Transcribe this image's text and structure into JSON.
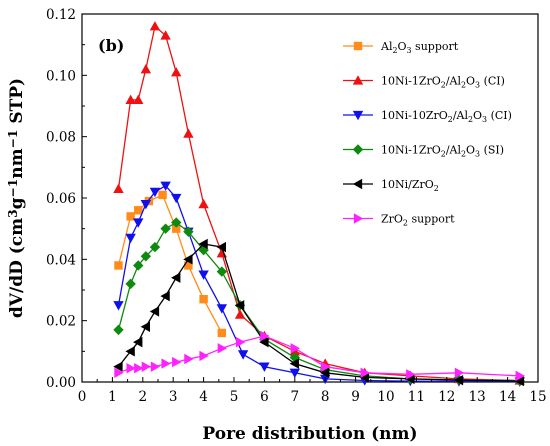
{
  "chart_data": {
    "type": "line",
    "panel_label": "(b)",
    "xlabel": "Pore distribution (nm)",
    "ylabel_parts": [
      {
        "t": "dV/dD (cm"
      },
      {
        "t": "3",
        "s": "sup"
      },
      {
        "t": "g"
      },
      {
        "t": "−1",
        "s": "sup"
      },
      {
        "t": "nm"
      },
      {
        "t": "−1",
        "s": "sup"
      },
      {
        "t": " STP)"
      }
    ],
    "xlim": [
      0,
      15
    ],
    "ylim": [
      0,
      0.12
    ],
    "xticks": [
      0,
      1,
      2,
      3,
      4,
      5,
      6,
      7,
      8,
      9,
      10,
      11,
      12,
      13,
      14,
      15
    ],
    "yticks": [
      0.0,
      0.02,
      0.04,
      0.06,
      0.08,
      0.1,
      0.12
    ],
    "ytick_labels": [
      "0.00",
      "0.02",
      "0.04",
      "0.06",
      "0.08",
      "0.10",
      "0.12"
    ],
    "legend_position": "right",
    "series": [
      {
        "name": "Al2O3 support",
        "name_parts": [
          {
            "t": "Al"
          },
          {
            "t": "2",
            "s": "sub"
          },
          {
            "t": "O"
          },
          {
            "t": "3",
            "s": "sub"
          },
          {
            "t": " support"
          }
        ],
        "color": "#ff8c1a",
        "marker": "square",
        "points": [
          [
            1.2,
            0.038
          ],
          [
            1.6,
            0.054
          ],
          [
            1.85,
            0.056
          ],
          [
            2.2,
            0.059
          ],
          [
            2.65,
            0.061
          ],
          [
            3.1,
            0.05
          ],
          [
            3.5,
            0.038
          ],
          [
            4.0,
            0.027
          ],
          [
            4.6,
            0.016
          ]
        ]
      },
      {
        "name": "10Ni-1ZrO2/Al2O3 (CI)",
        "name_parts": [
          {
            "t": "10Ni-1ZrO"
          },
          {
            "t": "2",
            "s": "sub"
          },
          {
            "t": "/Al"
          },
          {
            "t": "2",
            "s": "sub"
          },
          {
            "t": "O"
          },
          {
            "t": "3",
            "s": "sub"
          },
          {
            "t": " (CI)"
          }
        ],
        "color": "#ee1111",
        "marker": "triangle-up",
        "points": [
          [
            1.2,
            0.063
          ],
          [
            1.6,
            0.092
          ],
          [
            1.85,
            0.092
          ],
          [
            2.1,
            0.102
          ],
          [
            2.4,
            0.116
          ],
          [
            2.75,
            0.113
          ],
          [
            3.1,
            0.101
          ],
          [
            3.5,
            0.081
          ],
          [
            4.0,
            0.058
          ],
          [
            4.6,
            0.042
          ],
          [
            5.2,
            0.022
          ],
          [
            6.0,
            0.015
          ],
          [
            7.0,
            0.01
          ],
          [
            8.0,
            0.006
          ],
          [
            9.3,
            0.003
          ],
          [
            10.8,
            0.002
          ],
          [
            12.4,
            0.001
          ],
          [
            14.4,
            0.0005
          ]
        ]
      },
      {
        "name": "10Ni-10ZrO2/Al2O3 (CI)",
        "name_parts": [
          {
            "t": "10Ni-10ZrO"
          },
          {
            "t": "2",
            "s": "sub"
          },
          {
            "t": "/Al"
          },
          {
            "t": "2",
            "s": "sub"
          },
          {
            "t": "O"
          },
          {
            "t": "3",
            "s": "sub"
          },
          {
            "t": " (CI)"
          }
        ],
        "color": "#1010ee",
        "marker": "triangle-down",
        "points": [
          [
            1.2,
            0.025
          ],
          [
            1.6,
            0.047
          ],
          [
            1.85,
            0.052
          ],
          [
            2.1,
            0.058
          ],
          [
            2.4,
            0.062
          ],
          [
            2.75,
            0.064
          ],
          [
            3.1,
            0.06
          ],
          [
            3.5,
            0.049
          ],
          [
            4.0,
            0.035
          ],
          [
            4.6,
            0.024
          ],
          [
            5.3,
            0.009
          ],
          [
            6.0,
            0.005
          ],
          [
            7.0,
            0.003
          ],
          [
            8.0,
            0.001
          ],
          [
            9.3,
            0.0005
          ],
          [
            10.8,
            0.0003
          ],
          [
            12.4,
            0.0002
          ],
          [
            14.4,
            0.0001
          ]
        ]
      },
      {
        "name": "10Ni-1ZrO2/Al2O3 (SI)",
        "name_parts": [
          {
            "t": "10Ni-1ZrO"
          },
          {
            "t": "2",
            "s": "sub"
          },
          {
            "t": "/Al"
          },
          {
            "t": "2",
            "s": "sub"
          },
          {
            "t": "O"
          },
          {
            "t": "3",
            "s": "sub"
          },
          {
            "t": " (SI)"
          }
        ],
        "color": "#0e8a0e",
        "marker": "diamond",
        "points": [
          [
            1.2,
            0.017
          ],
          [
            1.6,
            0.032
          ],
          [
            1.85,
            0.038
          ],
          [
            2.1,
            0.041
          ],
          [
            2.4,
            0.044
          ],
          [
            2.75,
            0.05
          ],
          [
            3.1,
            0.052
          ],
          [
            3.5,
            0.049
          ],
          [
            4.0,
            0.043
          ],
          [
            4.6,
            0.036
          ],
          [
            5.2,
            0.025
          ],
          [
            6.0,
            0.014
          ],
          [
            7.0,
            0.008
          ],
          [
            8.0,
            0.004
          ],
          [
            9.3,
            0.002
          ],
          [
            10.8,
            0.001
          ],
          [
            12.4,
            0.0007
          ],
          [
            14.4,
            0.0004
          ]
        ]
      },
      {
        "name": "10Ni/ZrO2",
        "name_parts": [
          {
            "t": "10Ni/ZrO"
          },
          {
            "t": "2",
            "s": "sub"
          }
        ],
        "color": "#000000",
        "marker": "triangle-left",
        "points": [
          [
            1.2,
            0.005
          ],
          [
            1.6,
            0.01
          ],
          [
            1.85,
            0.013
          ],
          [
            2.1,
            0.018
          ],
          [
            2.4,
            0.023
          ],
          [
            2.75,
            0.028
          ],
          [
            3.1,
            0.034
          ],
          [
            3.5,
            0.04
          ],
          [
            4.0,
            0.045
          ],
          [
            4.6,
            0.044
          ],
          [
            5.2,
            0.025
          ],
          [
            6.0,
            0.013
          ],
          [
            7.0,
            0.006
          ],
          [
            8.0,
            0.003
          ],
          [
            9.3,
            0.0015
          ],
          [
            10.8,
            0.001
          ],
          [
            12.4,
            0.0006
          ],
          [
            14.4,
            0.0003
          ]
        ]
      },
      {
        "name": "ZrO2 support",
        "name_parts": [
          {
            "t": "ZrO"
          },
          {
            "t": "2",
            "s": "sub"
          },
          {
            "t": " support"
          }
        ],
        "color": "#ff22ff",
        "marker": "triangle-right",
        "points": [
          [
            1.2,
            0.003
          ],
          [
            1.6,
            0.0045
          ],
          [
            1.85,
            0.0045
          ],
          [
            2.1,
            0.005
          ],
          [
            2.4,
            0.005
          ],
          [
            2.75,
            0.006
          ],
          [
            3.1,
            0.0065
          ],
          [
            3.5,
            0.0075
          ],
          [
            4.0,
            0.0085
          ],
          [
            4.6,
            0.011
          ],
          [
            5.2,
            0.013
          ],
          [
            6.0,
            0.015
          ],
          [
            7.0,
            0.011
          ],
          [
            8.0,
            0.005
          ],
          [
            9.3,
            0.003
          ],
          [
            10.8,
            0.0025
          ],
          [
            12.4,
            0.003
          ],
          [
            14.4,
            0.002
          ]
        ]
      }
    ]
  }
}
